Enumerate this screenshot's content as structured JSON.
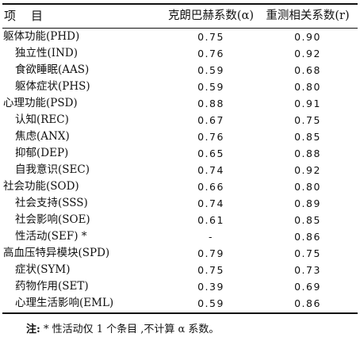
{
  "table": {
    "header": {
      "item": "项　目",
      "alpha": "克朗巴赫系数(α)",
      "r": "重测相关系数(r)"
    },
    "rows": [
      {
        "label": "躯体功能(PHD)",
        "level": 0,
        "alpha": "0.75",
        "r": "0.90"
      },
      {
        "label": "独立性(IND)",
        "level": 1,
        "alpha": "0.76",
        "r": "0.92"
      },
      {
        "label": "食欲睡眠(AAS)",
        "level": 1,
        "alpha": "0.59",
        "r": "0.68"
      },
      {
        "label": "躯体症状(PHS)",
        "level": 1,
        "alpha": "0.59",
        "r": "0.80"
      },
      {
        "label": "心理功能(PSD)",
        "level": 0,
        "alpha": "0.88",
        "r": "0.91"
      },
      {
        "label": "认知(REC)",
        "level": 1,
        "alpha": "0.67",
        "r": "0.75"
      },
      {
        "label": "焦虑(ANX)",
        "level": 1,
        "alpha": "0.76",
        "r": "0.85"
      },
      {
        "label": "抑郁(DEP)",
        "level": 1,
        "alpha": "0.65",
        "r": "0.88"
      },
      {
        "label": "自我意识(SEC)",
        "level": 1,
        "alpha": "0.74",
        "r": "0.92"
      },
      {
        "label": "社会功能(SOD)",
        "level": 0,
        "alpha": "0.66",
        "r": "0.80"
      },
      {
        "label": "社会支持(SSS)",
        "level": 1,
        "alpha": "0.74",
        "r": "0.89"
      },
      {
        "label": "社会影响(SOE)",
        "level": 1,
        "alpha": "0.61",
        "r": "0.85"
      },
      {
        "label": "性活动(SEF)  *",
        "level": 1,
        "alpha": "-",
        "r": "0.86"
      },
      {
        "label": "高血压特异模块(SPD)",
        "level": 0,
        "alpha": "0.79",
        "r": "0.75"
      },
      {
        "label": "症状(SYM)",
        "level": 1,
        "alpha": "0.75",
        "r": "0.73"
      },
      {
        "label": "药物作用(SET)",
        "level": 1,
        "alpha": "0.39",
        "r": "0.69"
      },
      {
        "label": "心理生活影响(EML)",
        "level": 1,
        "alpha": "0.59",
        "r": "0.86"
      }
    ]
  },
  "note": {
    "label": "注:",
    "text": " * 性活动仅 1 个条目 ,不计算 α 系数。"
  }
}
